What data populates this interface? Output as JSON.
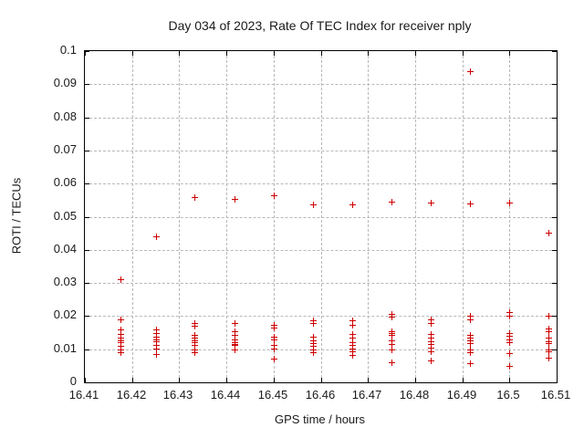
{
  "title": "Day 034 of 2023, Rate Of TEC Index for receiver nply",
  "chart_data": {
    "type": "scatter",
    "title": "Day 034 of 2023, Rate Of TEC Index for receiver nply",
    "xlabel": "GPS time / hours",
    "ylabel": "ROTI / TECUs",
    "xlim": [
      16.41,
      16.51
    ],
    "ylim": [
      0,
      0.1
    ],
    "x_ticks": [
      "16.41",
      "16.42",
      "16.43",
      "16.44",
      "16.45",
      "16.46",
      "16.47",
      "16.48",
      "16.49",
      "16.5",
      "16.51"
    ],
    "y_ticks": [
      "0",
      "0.01",
      "0.02",
      "0.03",
      "0.04",
      "0.05",
      "0.06",
      "0.07",
      "0.08",
      "0.09",
      "0.1"
    ],
    "grid": true,
    "legend": "none",
    "marker": "plus",
    "marker_color": "#cc0000",
    "series": [
      {
        "name": "ROTI",
        "points": [
          [
            16.4175,
            0.031
          ],
          [
            16.4175,
            0.019
          ],
          [
            16.4175,
            0.016
          ],
          [
            16.4175,
            0.0145
          ],
          [
            16.4175,
            0.0135
          ],
          [
            16.4175,
            0.0127
          ],
          [
            16.4175,
            0.012
          ],
          [
            16.4175,
            0.011
          ],
          [
            16.4175,
            0.01
          ],
          [
            16.4175,
            0.009
          ],
          [
            16.425,
            0.044
          ],
          [
            16.425,
            0.016
          ],
          [
            16.425,
            0.0148
          ],
          [
            16.425,
            0.0139
          ],
          [
            16.425,
            0.013
          ],
          [
            16.425,
            0.0123
          ],
          [
            16.425,
            0.0114
          ],
          [
            16.425,
            0.0102
          ],
          [
            16.425,
            0.0086
          ],
          [
            16.4333,
            0.056
          ],
          [
            16.4333,
            0.018
          ],
          [
            16.4333,
            0.017
          ],
          [
            16.4333,
            0.0143
          ],
          [
            16.4333,
            0.0134
          ],
          [
            16.4333,
            0.0127
          ],
          [
            16.4333,
            0.0122
          ],
          [
            16.4333,
            0.0114
          ],
          [
            16.4333,
            0.01
          ],
          [
            16.4333,
            0.0092
          ],
          [
            16.4417,
            0.0555
          ],
          [
            16.4417,
            0.0178
          ],
          [
            16.4417,
            0.0155
          ],
          [
            16.4417,
            0.0143
          ],
          [
            16.4417,
            0.013
          ],
          [
            16.4417,
            0.0122
          ],
          [
            16.4417,
            0.0117
          ],
          [
            16.4417,
            0.0112
          ],
          [
            16.4417,
            0.0098
          ],
          [
            16.45,
            0.0565
          ],
          [
            16.45,
            0.0173
          ],
          [
            16.45,
            0.0164
          ],
          [
            16.45,
            0.0139
          ],
          [
            16.45,
            0.013
          ],
          [
            16.45,
            0.0112
          ],
          [
            16.45,
            0.0103
          ],
          [
            16.45,
            0.0073
          ],
          [
            16.4583,
            0.0538
          ],
          [
            16.4583,
            0.0188
          ],
          [
            16.4583,
            0.0178
          ],
          [
            16.4583,
            0.0139
          ],
          [
            16.4583,
            0.0128
          ],
          [
            16.4583,
            0.0119
          ],
          [
            16.4583,
            0.011
          ],
          [
            16.4583,
            0.0098
          ],
          [
            16.4583,
            0.0092
          ],
          [
            16.4667,
            0.0538
          ],
          [
            16.4667,
            0.0186
          ],
          [
            16.4667,
            0.0173
          ],
          [
            16.4667,
            0.0146
          ],
          [
            16.4667,
            0.0134
          ],
          [
            16.4667,
            0.0121
          ],
          [
            16.4667,
            0.0114
          ],
          [
            16.4667,
            0.0103
          ],
          [
            16.4667,
            0.0093
          ],
          [
            16.4667,
            0.0082
          ],
          [
            16.475,
            0.0545
          ],
          [
            16.475,
            0.0207
          ],
          [
            16.475,
            0.0197
          ],
          [
            16.475,
            0.0155
          ],
          [
            16.475,
            0.0148
          ],
          [
            16.475,
            0.0142
          ],
          [
            16.475,
            0.0126
          ],
          [
            16.475,
            0.0115
          ],
          [
            16.475,
            0.01
          ],
          [
            16.475,
            0.0061
          ],
          [
            16.4833,
            0.0543
          ],
          [
            16.4833,
            0.0189
          ],
          [
            16.4833,
            0.018
          ],
          [
            16.4833,
            0.0146
          ],
          [
            16.4833,
            0.0134
          ],
          [
            16.4833,
            0.0125
          ],
          [
            16.4833,
            0.0116
          ],
          [
            16.4833,
            0.0104
          ],
          [
            16.4833,
            0.0095
          ],
          [
            16.4833,
            0.0067
          ],
          [
            16.4917,
            0.094
          ],
          [
            16.4917,
            0.0541
          ],
          [
            16.4917,
            0.02
          ],
          [
            16.4917,
            0.0191
          ],
          [
            16.4917,
            0.0143
          ],
          [
            16.4917,
            0.0134
          ],
          [
            16.4917,
            0.0128
          ],
          [
            16.4917,
            0.0119
          ],
          [
            16.4917,
            0.0098
          ],
          [
            16.4917,
            0.0092
          ],
          [
            16.4917,
            0.0057
          ],
          [
            16.5,
            0.0542
          ],
          [
            16.5,
            0.0211
          ],
          [
            16.5,
            0.0202
          ],
          [
            16.5,
            0.0149
          ],
          [
            16.5,
            0.014
          ],
          [
            16.5,
            0.0129
          ],
          [
            16.5,
            0.0122
          ],
          [
            16.5,
            0.0088
          ],
          [
            16.5,
            0.0049
          ],
          [
            16.5083,
            0.0452
          ],
          [
            16.5083,
            0.0201
          ],
          [
            16.5083,
            0.0162
          ],
          [
            16.5083,
            0.0153
          ],
          [
            16.5083,
            0.0134
          ],
          [
            16.5083,
            0.0125
          ],
          [
            16.5083,
            0.0119
          ],
          [
            16.5083,
            0.01
          ],
          [
            16.5083,
            0.0094
          ],
          [
            16.5083,
            0.0074
          ]
        ]
      }
    ]
  }
}
